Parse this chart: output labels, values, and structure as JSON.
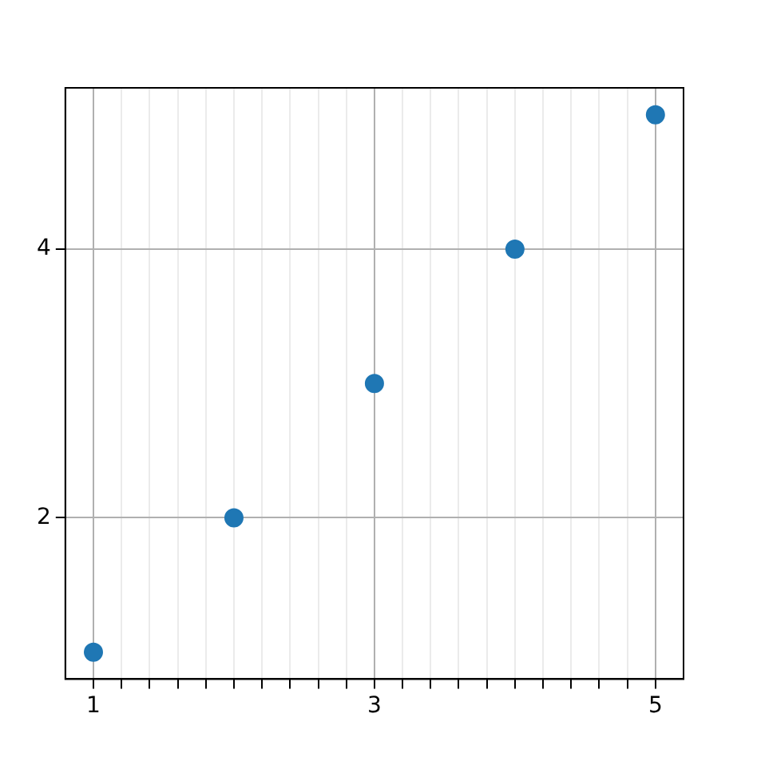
{
  "chart_data": {
    "type": "scatter",
    "x": [
      1,
      2,
      3,
      4,
      5
    ],
    "values": [
      1,
      2,
      3,
      4,
      5
    ],
    "color": "#1f77b4",
    "marker": "circle",
    "xlim": [
      0.8,
      5.2
    ],
    "ylim": [
      0.8,
      5.2
    ],
    "xticks": [
      1,
      {
        "value": 1.2,
        "label": null
      },
      {
        "value": 1.4,
        "label": null
      },
      {
        "value": 1.6,
        "label": null
      },
      {
        "value": 1.8,
        "label": null
      },
      {
        "value": 2,
        "label": null
      },
      {
        "value": 2.2,
        "label": null
      },
      {
        "value": 2.4,
        "label": null
      },
      {
        "value": 2.6,
        "label": null
      },
      {
        "value": 2.8,
        "label": null
      },
      3,
      {
        "value": 3.2,
        "label": null
      },
      {
        "value": 3.4,
        "label": null
      },
      {
        "value": 3.6,
        "label": null
      },
      {
        "value": 3.8,
        "label": null
      },
      {
        "value": 4,
        "label": null
      },
      {
        "value": 4.2,
        "label": null
      },
      {
        "value": 4.4,
        "label": null
      },
      {
        "value": 4.6,
        "label": null
      },
      {
        "value": 4.8,
        "label": null
      },
      5
    ],
    "yticks": [
      2,
      4
    ],
    "grid": true
  }
}
